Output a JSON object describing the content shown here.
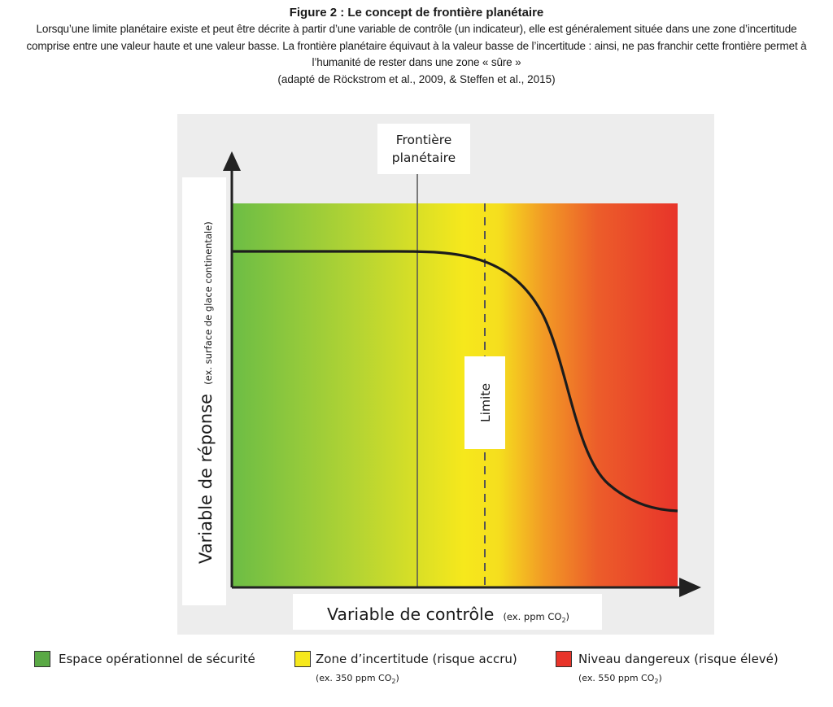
{
  "figure": {
    "title": "Figure 2 : Le concept de frontière planétaire",
    "description": "Lorsqu’une limite planétaire existe et peut être décrite à partir d’une variable de contrôle (un indicateur), elle est généralement située dans une zone d’incertitude comprise entre une valeur haute et une valeur basse. La frontière planétaire équivaut à la valeur basse de l’incertitude : ainsi, ne pas franchir cette frontière permet à l’humanité de rester dans une zone « sûre »",
    "source": "(adapté de Röckstrom et al., 2009, & Steffen et al., 2015)"
  },
  "diagram": {
    "boundary_label_line1": "Frontière",
    "boundary_label_line2": "planétaire",
    "limit_label": "Limite",
    "y_axis_main": "Variable de réponse",
    "y_axis_example": "(ex. surface de glace continentale)",
    "x_axis_main": "Variable de contrôle",
    "x_axis_example_prefix": "(ex. ppm CO",
    "x_axis_example_sub": "2",
    "x_axis_example_suffix": ")",
    "colors": {
      "safe": "#6cbd45",
      "uncertain": "#f6e81c",
      "danger": "#e8342a",
      "orange": "#f29a25",
      "panel_bg": "#ededed",
      "axis": "#222222"
    }
  },
  "legend": {
    "items": [
      {
        "label": "Espace opérationnel de sécurité",
        "example_prefix": "",
        "example_sub": "",
        "example_suffix": "",
        "color": "#5aa945"
      },
      {
        "label": "Zone d’incertitude (risque accru)",
        "example_prefix": "(ex. 350 ppm CO",
        "example_sub": "2",
        "example_suffix": ")",
        "color": "#f6e81c"
      },
      {
        "label": "Niveau dangereux (risque élevé)",
        "example_prefix": "(ex. 550 ppm CO",
        "example_sub": "2",
        "example_suffix": ")",
        "color": "#e8342a"
      }
    ]
  }
}
